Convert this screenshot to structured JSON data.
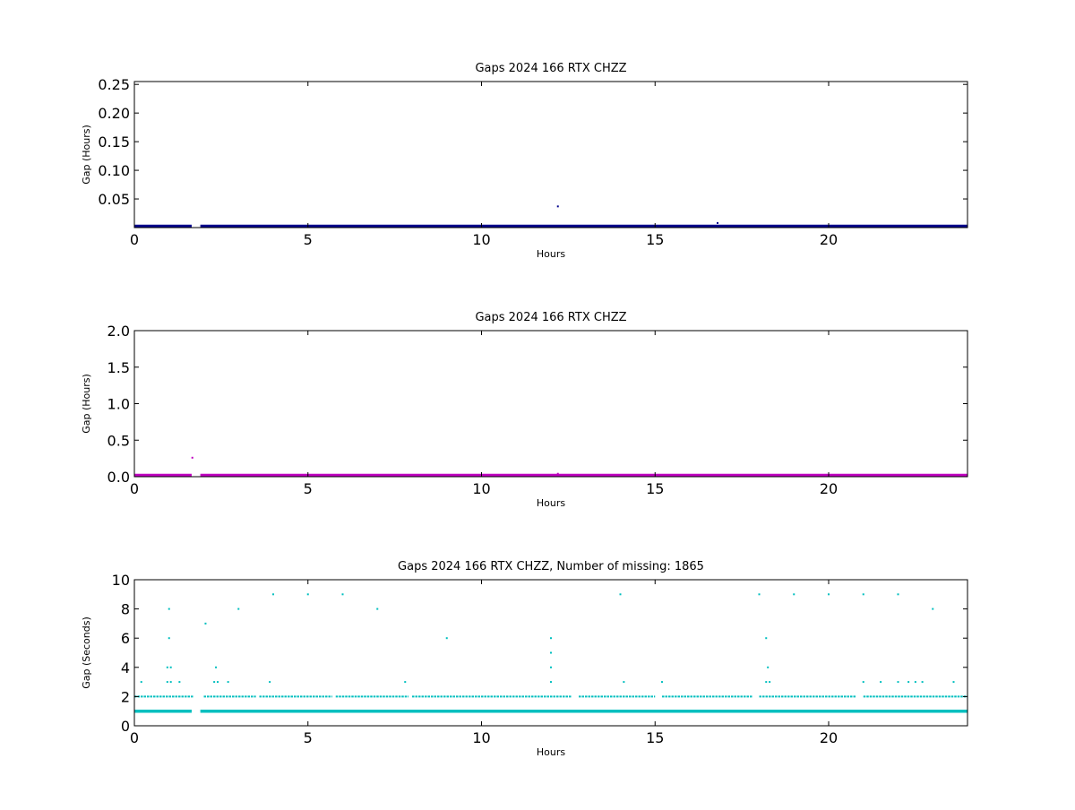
{
  "chart_data": [
    {
      "type": "scatter",
      "title": "Gaps 2024 166 RTX  CHZZ",
      "xlabel": "Hours",
      "ylabel": "Gap (Hours)",
      "xlim": [
        0,
        24
      ],
      "ylim": [
        0,
        0.255
      ],
      "xticks": [
        0,
        5,
        10,
        15,
        20
      ],
      "xticklabels": [
        "0",
        "5",
        "10",
        "15",
        "20"
      ],
      "yticks": [
        0.05,
        0.1,
        0.15,
        0.2,
        0.25
      ],
      "yticklabels": [
        "0.05",
        "0.10",
        "0.15",
        "0.20",
        "0.25"
      ],
      "grid": false,
      "color": "#00008b",
      "baseline": {
        "y": 0.0003,
        "segments": [
          [
            0,
            1.65
          ],
          [
            1.9,
            24
          ]
        ]
      },
      "points": [
        {
          "x": 12.2,
          "y": 0.037
        },
        {
          "x": 16.8,
          "y": 0.008
        }
      ]
    },
    {
      "type": "scatter",
      "title": "Gaps 2024 166 RTX  CHZZ",
      "xlabel": "Hours",
      "ylabel": "Gap (Hours)",
      "xlim": [
        0,
        24
      ],
      "ylim": [
        0,
        2.0
      ],
      "xticks": [
        0,
        5,
        10,
        15,
        20
      ],
      "xticklabels": [
        "0",
        "5",
        "10",
        "15",
        "20"
      ],
      "yticks": [
        0,
        0.5,
        1.0,
        1.5,
        2.0
      ],
      "yticklabels": [
        "0.0",
        "0.5",
        "1.0",
        "1.5",
        "2.0"
      ],
      "grid": false,
      "color": "#bf00bf",
      "baseline": {
        "y": 0.0003,
        "segments": [
          [
            0,
            1.65
          ],
          [
            1.9,
            24
          ]
        ]
      },
      "points": [
        {
          "x": 1.67,
          "y": 0.26
        },
        {
          "x": 12.2,
          "y": 0.04
        }
      ]
    },
    {
      "type": "scatter",
      "title": "Gaps 2024 166 RTX  CHZZ, Number of missing: 1865",
      "xlabel": "Hours",
      "ylabel": "Gap (Seconds)",
      "xlim": [
        0,
        24
      ],
      "ylim": [
        0,
        10
      ],
      "xticks": [
        0,
        5,
        10,
        15,
        20
      ],
      "xticklabels": [
        "0",
        "5",
        "10",
        "15",
        "20"
      ],
      "yticks": [
        0,
        2,
        4,
        6,
        8,
        10
      ],
      "yticklabels": [
        "0",
        "2",
        "4",
        "6",
        "8",
        "10"
      ],
      "grid": false,
      "color": "#00bfbf",
      "baseline": {
        "y": 1,
        "segments": [
          [
            0,
            1.65
          ],
          [
            1.9,
            24
          ]
        ]
      },
      "band2": {
        "y": 2,
        "segments": [
          [
            0,
            1.7
          ],
          [
            2.0,
            3.5
          ],
          [
            3.6,
            5.7
          ],
          [
            5.8,
            7.9
          ],
          [
            8.0,
            12.6
          ],
          [
            12.8,
            15.0
          ],
          [
            15.2,
            17.8
          ],
          [
            18.0,
            20.8
          ],
          [
            21.0,
            24
          ]
        ]
      },
      "points": [
        {
          "x": 0.2,
          "y": 3
        },
        {
          "x": 0.95,
          "y": 4
        },
        {
          "x": 1.05,
          "y": 4
        },
        {
          "x": 0.95,
          "y": 3
        },
        {
          "x": 1.05,
          "y": 3
        },
        {
          "x": 1.0,
          "y": 6
        },
        {
          "x": 1.0,
          "y": 8
        },
        {
          "x": 1.3,
          "y": 3
        },
        {
          "x": 2.05,
          "y": 7
        },
        {
          "x": 2.3,
          "y": 3
        },
        {
          "x": 2.35,
          "y": 4
        },
        {
          "x": 2.4,
          "y": 3
        },
        {
          "x": 2.7,
          "y": 3
        },
        {
          "x": 3.0,
          "y": 8
        },
        {
          "x": 3.9,
          "y": 3
        },
        {
          "x": 4.0,
          "y": 9
        },
        {
          "x": 5.0,
          "y": 9
        },
        {
          "x": 6.0,
          "y": 9
        },
        {
          "x": 7.0,
          "y": 8
        },
        {
          "x": 7.8,
          "y": 3
        },
        {
          "x": 9.0,
          "y": 6
        },
        {
          "x": 12.0,
          "y": 6
        },
        {
          "x": 12.0,
          "y": 5
        },
        {
          "x": 12.0,
          "y": 4
        },
        {
          "x": 12.0,
          "y": 3
        },
        {
          "x": 14.0,
          "y": 9
        },
        {
          "x": 14.1,
          "y": 3
        },
        {
          "x": 15.2,
          "y": 3
        },
        {
          "x": 18.0,
          "y": 9
        },
        {
          "x": 18.2,
          "y": 6
        },
        {
          "x": 18.25,
          "y": 4
        },
        {
          "x": 18.2,
          "y": 3
        },
        {
          "x": 18.3,
          "y": 3
        },
        {
          "x": 19.0,
          "y": 9
        },
        {
          "x": 20.0,
          "y": 9
        },
        {
          "x": 21.0,
          "y": 9
        },
        {
          "x": 21.0,
          "y": 3
        },
        {
          "x": 21.5,
          "y": 3
        },
        {
          "x": 22.0,
          "y": 9
        },
        {
          "x": 22.0,
          "y": 3
        },
        {
          "x": 22.3,
          "y": 3
        },
        {
          "x": 22.5,
          "y": 3
        },
        {
          "x": 22.7,
          "y": 3
        },
        {
          "x": 23.0,
          "y": 8
        },
        {
          "x": 23.6,
          "y": 3
        }
      ]
    }
  ]
}
